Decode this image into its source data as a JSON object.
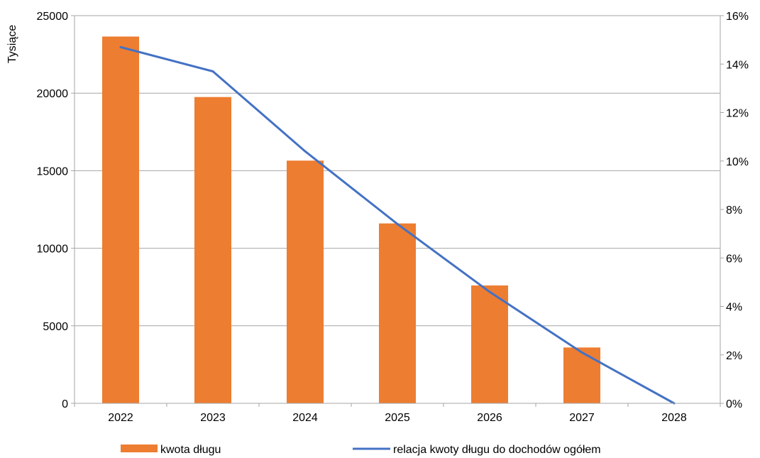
{
  "chart_data": {
    "type": "bar+line",
    "categories": [
      "2022",
      "2023",
      "2024",
      "2025",
      "2026",
      "2027",
      "2028"
    ],
    "series": [
      {
        "name": "kwota długu",
        "type": "bar",
        "axis": "left",
        "color": "#ED7D31",
        "values": [
          23650,
          19750,
          15650,
          11600,
          7600,
          3600,
          0
        ]
      },
      {
        "name": "relacja kwoty długu do dochodów ogółem",
        "type": "line",
        "axis": "right",
        "color": "#4472C4",
        "values": [
          0.147,
          0.137,
          0.104,
          0.074,
          0.046,
          0.021,
          0.0
        ]
      }
    ],
    "ylabel": "Tysiące",
    "ylim": [
      0,
      25000
    ],
    "yticks": [
      "0",
      "5000",
      "10000",
      "15000",
      "20000",
      "25000"
    ],
    "y2lim": [
      0,
      0.16
    ],
    "y2ticks": [
      "0%",
      "2%",
      "4%",
      "6%",
      "8%",
      "10%",
      "12%",
      "14%",
      "16%"
    ],
    "grid": true,
    "legend_position": "bottom"
  }
}
